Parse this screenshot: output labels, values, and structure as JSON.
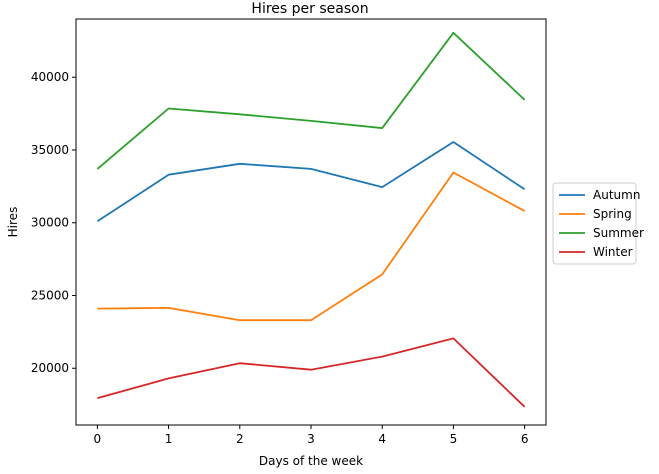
{
  "chart_data": {
    "type": "line",
    "title": "Hires per season",
    "xlabel": "Days of the week",
    "ylabel": "Hires",
    "x": [
      0,
      1,
      2,
      3,
      4,
      5,
      6
    ],
    "xticks": [
      "0",
      "1",
      "2",
      "3",
      "4",
      "5",
      "6"
    ],
    "yticks": [
      20000,
      25000,
      30000,
      35000,
      40000
    ],
    "ytick_labels": [
      "20000",
      "25000",
      "30000",
      "35000",
      "40000"
    ],
    "xlim": [
      -0.3,
      6.3
    ],
    "ylim": [
      16100,
      44000
    ],
    "grid": false,
    "legend_position": "right-outside",
    "series": [
      {
        "name": "Autumn",
        "color": "#1f77b4",
        "values": [
          30100,
          33300,
          34050,
          33700,
          32450,
          35550,
          32300
        ]
      },
      {
        "name": "Spring",
        "color": "#ff7f0e",
        "values": [
          24100,
          24150,
          23300,
          23300,
          26450,
          33450,
          30800
        ]
      },
      {
        "name": "Summer",
        "color": "#2ca02c",
        "values": [
          33700,
          37850,
          37450,
          37000,
          36500,
          43050,
          38450
        ]
      },
      {
        "name": "Winter",
        "color": "#d62728",
        "values": [
          17950,
          19300,
          20350,
          19900,
          20800,
          22050,
          17350
        ]
      }
    ]
  }
}
